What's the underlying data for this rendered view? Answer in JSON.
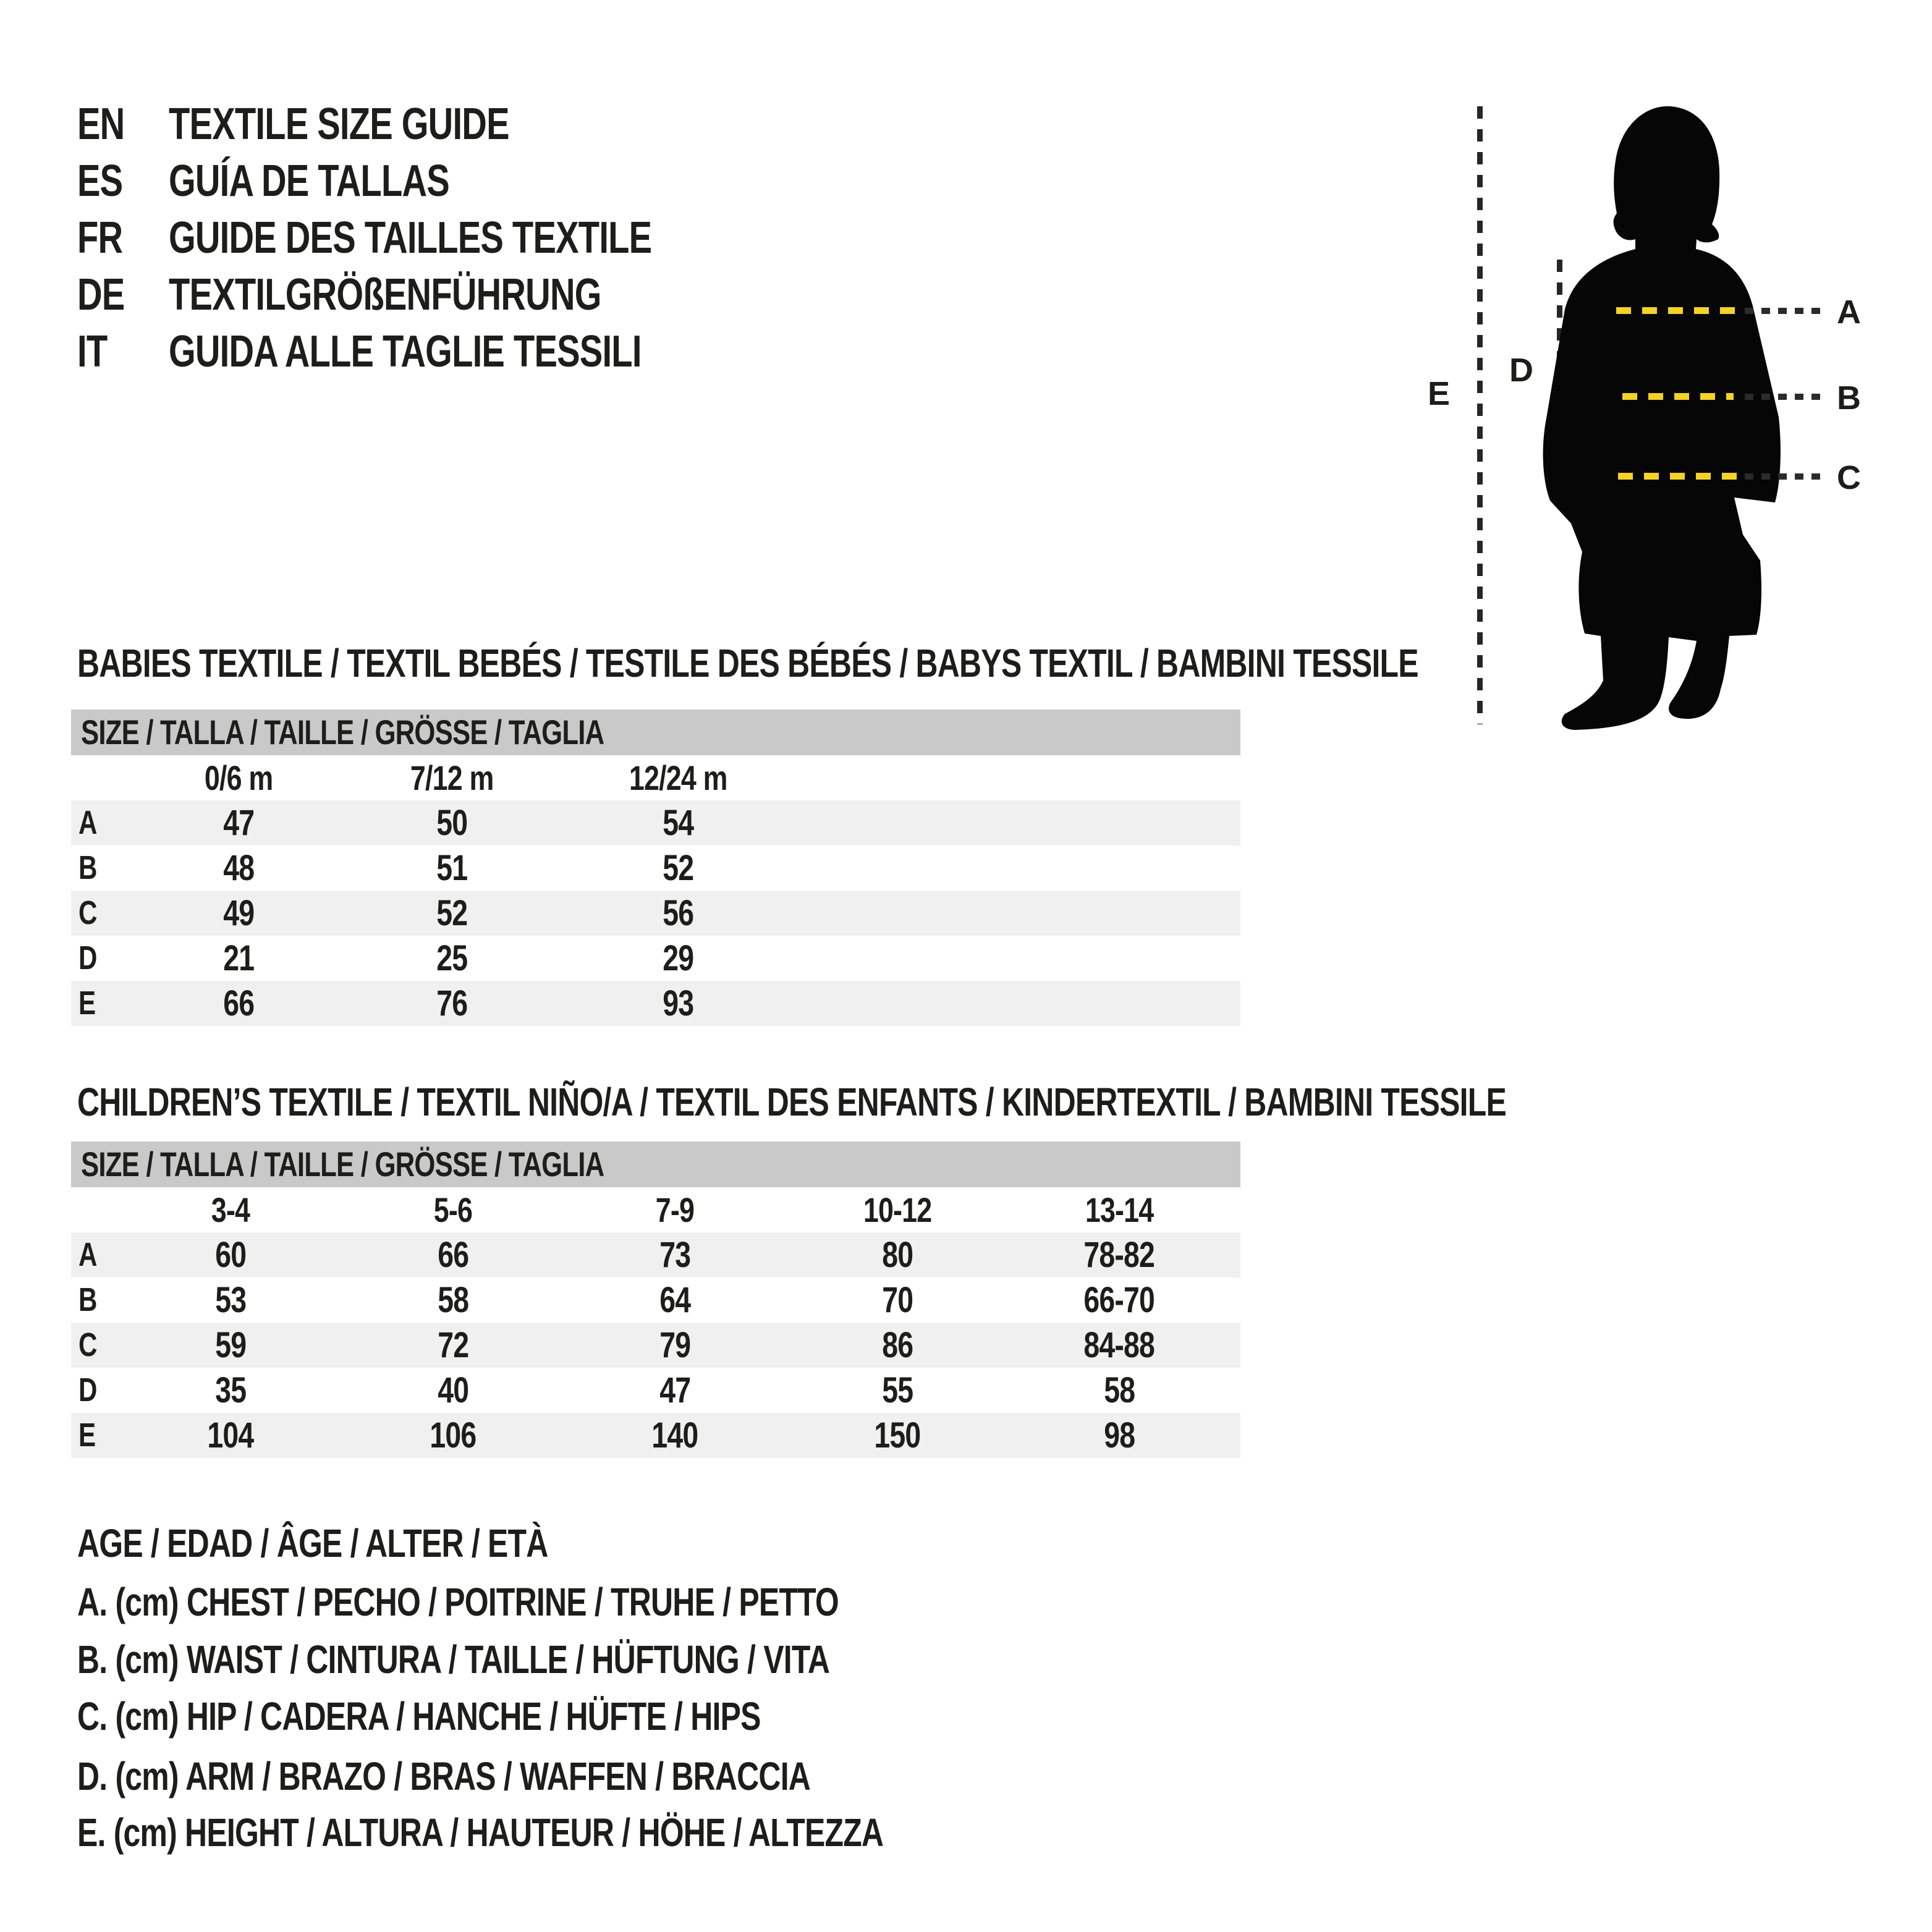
{
  "header": {
    "languages": [
      {
        "code": "EN",
        "title": "TEXTILE SIZE GUIDE"
      },
      {
        "code": "ES",
        "title": "GUÍA DE TALLAS"
      },
      {
        "code": "FR",
        "title": "GUIDE DES TAILLES TEXTILE"
      },
      {
        "code": "DE",
        "title": "TEXTILGRÖßENFÜHRUNG"
      },
      {
        "code": "IT",
        "title": "GUIDA ALLE TAGLIE TESSILI"
      }
    ]
  },
  "figure": {
    "labels": {
      "a": "A",
      "b": "B",
      "c": "C",
      "d": "D",
      "e": "E"
    },
    "accent_yellow": "#f4d326",
    "silhouette_color": "#060606"
  },
  "babies_table": {
    "heading": "BABIES TEXTILE / TEXTIL BEBÉS / TESTILE DES BÉBÉS / BABYS TEXTIL / BAMBINI TESSILE",
    "size_header": "SIZE / TALLA / TAILLE / GRÖSSE / TAGLIA",
    "columns": [
      "0/6 m",
      "7/12 m",
      "12/24 m"
    ],
    "rows": [
      {
        "label": "A",
        "values": [
          "47",
          "50",
          "54"
        ]
      },
      {
        "label": "B",
        "values": [
          "48",
          "51",
          "52"
        ]
      },
      {
        "label": "C",
        "values": [
          "49",
          "52",
          "56"
        ]
      },
      {
        "label": "D",
        "values": [
          "21",
          "25",
          "29"
        ]
      },
      {
        "label": "E",
        "values": [
          "66",
          "76",
          "93"
        ]
      }
    ]
  },
  "children_table": {
    "heading": "CHILDREN’S TEXTILE / TEXTIL NIÑO/A / TEXTIL DES ENFANTS / KINDERTEXTIL / BAMBINI TESSILE",
    "size_header": "SIZE / TALLA / TAILLE / GRÖSSE / TAGLIA",
    "columns": [
      "3-4",
      "5-6",
      "7-9",
      "10-12",
      "13-14"
    ],
    "rows": [
      {
        "label": "A",
        "values": [
          "60",
          "66",
          "73",
          "80",
          "78-82"
        ]
      },
      {
        "label": "B",
        "values": [
          "53",
          "58",
          "64",
          "70",
          "66-70"
        ]
      },
      {
        "label": "C",
        "values": [
          "59",
          "72",
          "79",
          "86",
          "84-88"
        ]
      },
      {
        "label": "D",
        "values": [
          "35",
          "40",
          "47",
          "55",
          "58"
        ]
      },
      {
        "label": "E",
        "values": [
          "104",
          "106",
          "140",
          "150",
          "98"
        ]
      }
    ]
  },
  "legend": {
    "lines": [
      "AGE / EDAD / ÂGE / ALTER / ETÀ",
      "A. (cm) CHEST / PECHO / POITRINE / TRUHE / PETTO",
      "B. (cm) WAIST / CINTURA / TAILLE / HÜFTUNG / VITA",
      "C. (cm) HIP / CADERA / HANCHE / HÜFTE / HIPS",
      "D. (cm) ARM / BRAZO / BRAS / WAFFEN / BRACCIA",
      "E. (cm) HEIGHT / ALTURA / HAUTEUR / HÖHE / ALTEZZA"
    ]
  },
  "colors": {
    "table_header_bg": "#c9c9c9",
    "row_stripe": "#f0f0f0",
    "text": "#1d1d1b",
    "accent_yellow": "#f4d326"
  }
}
